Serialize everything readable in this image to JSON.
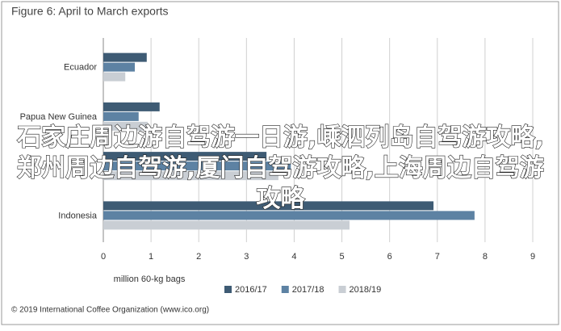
{
  "chart_data": {
    "type": "bar",
    "orientation": "horizontal",
    "title": "Figure 6: April to March exports",
    "x_label": "million 60-kg bags",
    "source": "© 2019 International Coffee Organization (www.ico.org)",
    "categories": [
      "Ecuador",
      "Papua New Guinea",
      null,
      "Indonesia"
    ],
    "series": [
      {
        "name": "2016/17",
        "color": "#3e5b74",
        "values": [
          0.91,
          1.18,
          3.42,
          6.92
        ]
      },
      {
        "name": "2017/18",
        "color": "#5d82a3",
        "values": [
          0.66,
          0.74,
          3.93,
          7.78
        ]
      },
      {
        "name": "2018/19",
        "color": "#c9ced4",
        "values": [
          0.46,
          0.93,
          3.67,
          5.16
        ]
      }
    ],
    "xlim": [
      0,
      9
    ],
    "xticks": [
      0,
      1,
      2,
      3,
      4,
      5,
      6,
      7,
      8,
      9
    ],
    "grid": true,
    "legend": "bottom"
  },
  "overlay_text": "石家庄周边游自驾游一日游,嵊泗列岛自驾游攻略,郑州周边自驾游,厦门自驾游攻略,上海周边自驾游攻略"
}
